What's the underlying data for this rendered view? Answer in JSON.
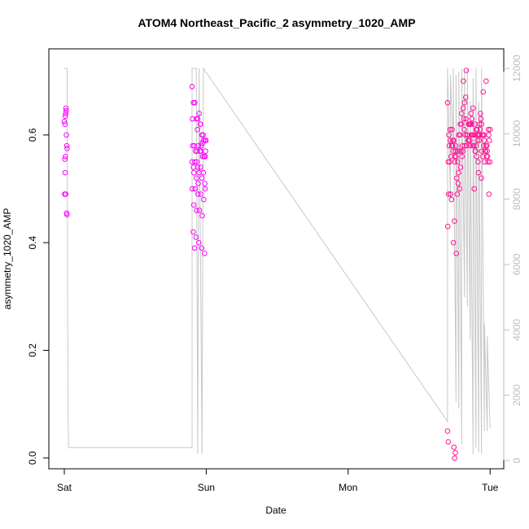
{
  "chart_data": {
    "type": "scatter",
    "title": "ATOM4 Northeast_Pacific_2 asymmetry_1020_AMP",
    "xlabel": "Date",
    "ylabel": "asymmetry_1020_AMP",
    "x_ticks": [
      "Sat",
      "Sun",
      "Mon",
      "Tue"
    ],
    "x_range_days": [
      0,
      3.1
    ],
    "ylim": [
      -0.02,
      0.76
    ],
    "y_ticks": [
      0.0,
      0.2,
      0.4,
      0.6
    ],
    "y2lim": [
      -250,
      12600
    ],
    "y2_ticks": [
      0,
      2000,
      4000,
      6000,
      8000,
      10000,
      12000
    ],
    "colors": {
      "points_main": "#ff00ff",
      "points_recent": "#ff1493",
      "secondary_line": "#c8c8c8",
      "right_axis": "#bebebe"
    },
    "series": [
      {
        "role": "points",
        "x": [
          0.0,
          0.005,
          0.01,
          0.012,
          0.015,
          0.018,
          0.02,
          0.004,
          0.008,
          0.006,
          0.003,
          0.01,
          0.016,
          0.019,
          0.007,
          0.013
        ],
        "y": [
          0.625,
          0.62,
          0.64,
          0.65,
          0.6,
          0.58,
          0.575,
          0.555,
          0.56,
          0.53,
          0.49,
          0.49,
          0.455,
          0.452,
          0.635,
          0.645
        ]
      },
      {
        "role": "points",
        "x": [
          0.9,
          0.91,
          0.92,
          0.93,
          0.94,
          0.95,
          0.96,
          0.97,
          0.98,
          0.99,
          0.905,
          0.915,
          0.925,
          0.935,
          0.945,
          0.955,
          0.965,
          0.975,
          0.985,
          0.995,
          0.9,
          0.92,
          0.94,
          0.96,
          0.98,
          0.91,
          0.93,
          0.95,
          0.97,
          0.99,
          0.902,
          0.922,
          0.942,
          0.962,
          0.982,
          0.912,
          0.932,
          0.952,
          0.972,
          0.992,
          0.908,
          0.928,
          0.948,
          0.968,
          0.988,
          0.918,
          0.938,
          0.958,
          0.978,
          0.998,
          0.903,
          0.933,
          0.963,
          0.993,
          0.913,
          0.943,
          0.973
        ],
        "y": [
          0.69,
          0.66,
          0.66,
          0.63,
          0.63,
          0.64,
          0.62,
          0.6,
          0.59,
          0.59,
          0.58,
          0.58,
          0.57,
          0.57,
          0.58,
          0.57,
          0.58,
          0.56,
          0.56,
          0.57,
          0.55,
          0.55,
          0.54,
          0.54,
          0.53,
          0.54,
          0.52,
          0.53,
          0.52,
          0.51,
          0.5,
          0.5,
          0.49,
          0.49,
          0.48,
          0.47,
          0.46,
          0.46,
          0.45,
          0.5,
          0.42,
          0.41,
          0.4,
          0.39,
          0.38,
          0.39,
          0.61,
          0.62,
          0.6,
          0.59,
          0.63,
          0.55,
          0.57,
          0.56,
          0.53,
          0.51,
          0.585
        ]
      },
      {
        "role": "points",
        "x": [
          2.7,
          2.71,
          2.72,
          2.73,
          2.74,
          2.75,
          2.76,
          2.77,
          2.78,
          2.79,
          2.8,
          2.81,
          2.82,
          2.83,
          2.84,
          2.85,
          2.86,
          2.87,
          2.88,
          2.89,
          2.9,
          2.91,
          2.92,
          2.93,
          2.94,
          2.95,
          2.96,
          2.97,
          2.98,
          2.99,
          3.0,
          2.705,
          2.715,
          2.725,
          2.735,
          2.745,
          2.755,
          2.765,
          2.775,
          2.785,
          2.795,
          2.805,
          2.815,
          2.825,
          2.835,
          2.845,
          2.855,
          2.865,
          2.875,
          2.885,
          2.895,
          2.905,
          2.915,
          2.925,
          2.935,
          2.945,
          2.955,
          2.965,
          2.975,
          2.985,
          2.995,
          2.708,
          2.728,
          2.748,
          2.768,
          2.788,
          2.808,
          2.828,
          2.848,
          2.868,
          2.888,
          2.908,
          2.928,
          2.948,
          2.968,
          2.988,
          2.718,
          2.738,
          2.758,
          2.778,
          2.798,
          2.818,
          2.838,
          2.858,
          2.878,
          2.898,
          2.918,
          2.938,
          2.958,
          2.978,
          2.998,
          2.702,
          2.722,
          2.742,
          2.762,
          2.782,
          2.802,
          2.822,
          2.842,
          2.862,
          2.882,
          2.902,
          2.922,
          2.942,
          2.962,
          2.982,
          2.712,
          2.732,
          2.752,
          2.772,
          2.792,
          2.812,
          2.832,
          2.852,
          2.872,
          2.892,
          2.912,
          2.932,
          2.952,
          2.972,
          2.992,
          2.7,
          2.705,
          2.745,
          2.75,
          2.755
        ],
        "y": [
          0.66,
          0.6,
          0.59,
          0.58,
          0.57,
          0.56,
          0.56,
          0.57,
          0.6,
          0.62,
          0.64,
          0.65,
          0.66,
          0.63,
          0.6,
          0.59,
          0.58,
          0.62,
          0.65,
          0.6,
          0.58,
          0.59,
          0.6,
          0.61,
          0.62,
          0.6,
          0.59,
          0.58,
          0.57,
          0.6,
          0.61,
          0.55,
          0.55,
          0.56,
          0.58,
          0.59,
          0.57,
          0.52,
          0.51,
          0.5,
          0.57,
          0.58,
          0.63,
          0.6,
          0.58,
          0.59,
          0.62,
          0.64,
          0.6,
          0.58,
          0.57,
          0.56,
          0.55,
          0.62,
          0.63,
          0.6,
          0.58,
          0.57,
          0.56,
          0.55,
          0.59,
          0.49,
          0.48,
          0.44,
          0.49,
          0.6,
          0.57,
          0.67,
          0.62,
          0.6,
          0.5,
          0.61,
          0.6,
          0.56,
          0.57,
          0.61,
          0.61,
          0.59,
          0.58,
          0.53,
          0.62,
          0.61,
          0.6,
          0.59,
          0.58,
          0.57,
          0.53,
          0.52,
          0.6,
          0.58,
          0.55,
          0.43,
          0.49,
          0.4,
          0.38,
          0.57,
          0.56,
          0.58,
          0.6,
          0.62,
          0.6,
          0.61,
          0.59,
          0.57,
          0.55,
          0.56,
          0.58,
          0.61,
          0.55,
          0.55,
          0.54,
          0.7,
          0.72,
          0.62,
          0.63,
          0.62,
          0.6,
          0.64,
          0.68,
          0.7,
          0.49,
          0.05,
          0.03,
          0.02,
          0.0,
          0.01
        ]
      },
      {
        "role": "secondary_line",
        "x": [
          0.0,
          0.02,
          0.025,
          0.03,
          0.9,
          0.9,
          0.93,
          0.94,
          0.95,
          0.97,
          0.98,
          2.7,
          2.7,
          2.72,
          2.72,
          2.74,
          2.74,
          2.76,
          2.76,
          2.78,
          2.78,
          2.8,
          2.8,
          2.82,
          2.82,
          2.84,
          2.84,
          2.86,
          2.86,
          2.88,
          2.88,
          2.9,
          2.9,
          2.92,
          2.92,
          2.94,
          2.94,
          2.96,
          2.96,
          2.98,
          2.98,
          3.0
        ],
        "y": [
          12000,
          12000,
          2000,
          400,
          400,
          12000,
          12000,
          200,
          12000,
          200,
          12000,
          1200,
          12000,
          8000,
          11800,
          9500,
          12000,
          1800,
          11800,
          1600,
          11900,
          500,
          12000,
          5000,
          11900,
          4700,
          12000,
          3700,
          11000,
          200,
          11700,
          400,
          12000,
          250,
          11000,
          200,
          12000,
          900,
          4200,
          900,
          3800,
          1000
        ]
      }
    ]
  }
}
